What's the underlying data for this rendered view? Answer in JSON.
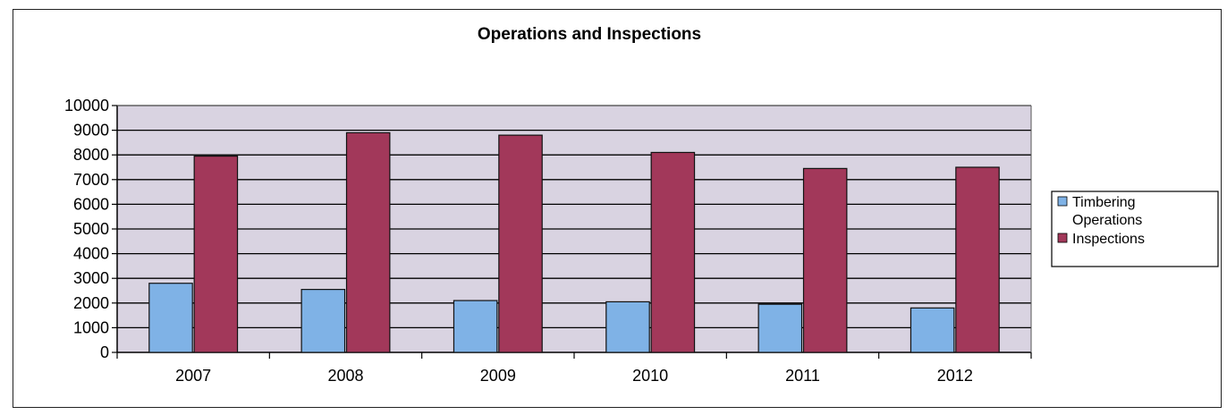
{
  "chart_data": {
    "type": "bar",
    "title": "Operations and Inspections",
    "xlabel": "",
    "ylabel": "",
    "categories": [
      "2007",
      "2008",
      "2009",
      "2010",
      "2011",
      "2012"
    ],
    "series": [
      {
        "name": "Timbering Operations",
        "values": [
          2800,
          2550,
          2100,
          2050,
          1950,
          1800
        ],
        "color": "#7fb2e6"
      },
      {
        "name": "Inspections",
        "values": [
          7950,
          8900,
          8800,
          8100,
          7450,
          7500
        ],
        "color": "#a2385a"
      }
    ],
    "ylim": [
      0,
      10000
    ],
    "yticks": [
      "0",
      "1000",
      "2000",
      "3000",
      "4000",
      "5000",
      "6000",
      "7000",
      "8000",
      "9000",
      "10000"
    ],
    "grid": true,
    "legend_position": "right",
    "plot_background": "#d9d3e1"
  }
}
